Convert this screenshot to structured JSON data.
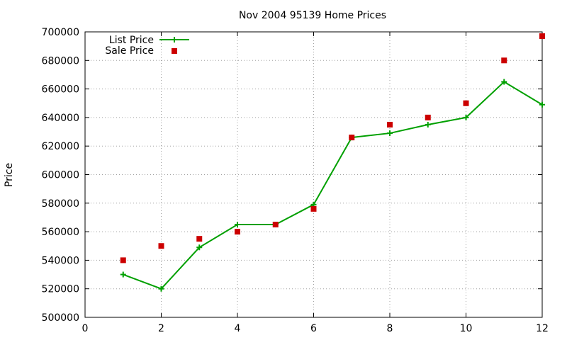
{
  "chart_data": {
    "type": "line",
    "title": "Nov 2004 95139 Home Prices",
    "xlabel": "",
    "ylabel": "Price",
    "xlim": [
      0,
      12
    ],
    "ylim": [
      500000,
      700000
    ],
    "xticks": [
      0,
      2,
      4,
      6,
      8,
      10,
      12
    ],
    "yticks": [
      500000,
      520000,
      540000,
      560000,
      580000,
      600000,
      620000,
      640000,
      660000,
      680000,
      700000
    ],
    "grid": true,
    "legend_position": "top-left",
    "series": [
      {
        "name": "List Price",
        "style": "line-with-plus-markers",
        "color": "#00a000",
        "x": [
          1,
          2,
          3,
          4,
          5,
          6,
          7,
          8,
          9,
          10,
          11,
          12
        ],
        "y": [
          530000,
          520000,
          549000,
          565000,
          565000,
          579000,
          626000,
          629000,
          635000,
          640000,
          665000,
          649000
        ]
      },
      {
        "name": "Sale Price",
        "style": "square-markers",
        "color": "#cc0000",
        "x": [
          1,
          2,
          3,
          4,
          5,
          6,
          7,
          8,
          9,
          10,
          11,
          12
        ],
        "y": [
          540000,
          550000,
          555000,
          560000,
          565000,
          576000,
          626000,
          635000,
          640000,
          650000,
          680000,
          697000
        ]
      }
    ]
  }
}
